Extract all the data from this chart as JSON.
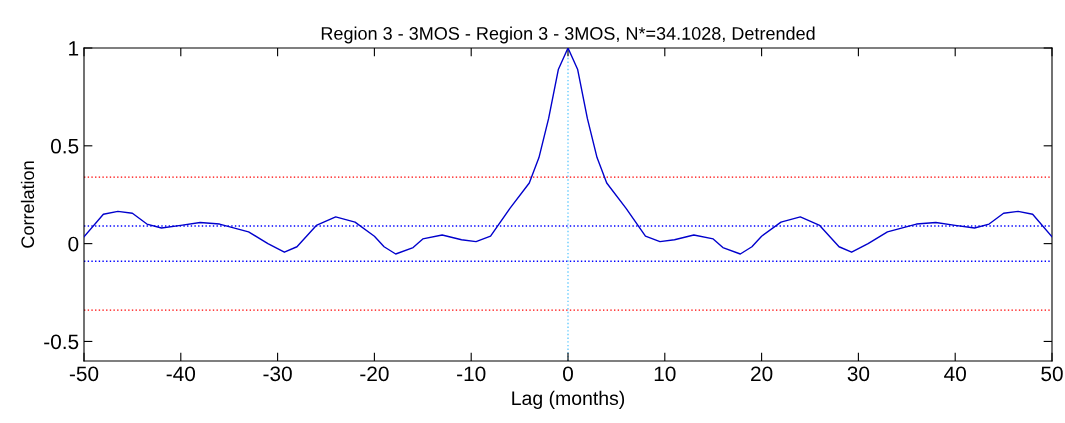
{
  "chart_data": {
    "type": "line",
    "title": "Region 3 - 3MOS - Region 3 - 3MOS, N*=34.1028, Detrended",
    "xlabel": "Lag (months)",
    "ylabel": "Correlation",
    "x": [
      -50,
      -48,
      -46.5,
      -45,
      -43.5,
      -42,
      -40,
      -38,
      -36,
      -33,
      -31,
      -29.3,
      -28,
      -26,
      -24,
      -22,
      -20,
      -19,
      -17.8,
      -16,
      -15,
      -13,
      -11,
      -9.5,
      -8,
      -6,
      -4,
      -3,
      -2,
      -1,
      0,
      1,
      2,
      3,
      4,
      6,
      8,
      9.5,
      11,
      13,
      15,
      16,
      17.8,
      19,
      20,
      22,
      24,
      26,
      28,
      29.3,
      31,
      33,
      36,
      38,
      40,
      42,
      43.5,
      45,
      46.5,
      48,
      50
    ],
    "series": [
      {
        "color": "#0000cc",
        "values": [
          0.035,
          0.15,
          0.165,
          0.155,
          0.1,
          0.08,
          0.093,
          0.108,
          0.1,
          0.06,
          0.0,
          -0.044,
          -0.016,
          0.093,
          0.137,
          0.11,
          0.038,
          -0.016,
          -0.053,
          -0.02,
          0.024,
          0.044,
          0.02,
          0.01,
          0.038,
          0.18,
          0.31,
          0.44,
          0.64,
          0.89,
          1.0,
          0.89,
          0.64,
          0.44,
          0.31,
          0.18,
          0.038,
          0.01,
          0.02,
          0.044,
          0.024,
          -0.02,
          -0.053,
          -0.016,
          0.038,
          0.11,
          0.137,
          0.093,
          -0.016,
          -0.044,
          0.0,
          0.06,
          0.1,
          0.108,
          0.093,
          0.08,
          0.1,
          0.155,
          0.165,
          0.15,
          0.035
        ]
      }
    ],
    "xlim": [
      -50,
      50
    ],
    "ylim": [
      -0.6,
      1
    ],
    "xticks": [
      -50,
      -40,
      -30,
      -20,
      -10,
      0,
      10,
      20,
      30,
      40,
      50
    ],
    "yticks": [
      -0.5,
      0,
      0.5,
      1
    ],
    "ref_lines": [
      {
        "axis": "y",
        "value": 0.34,
        "color": "#ff0000",
        "line_style": "dotted"
      },
      {
        "axis": "y",
        "value": -0.34,
        "color": "#ff0000",
        "line_style": "dotted"
      },
      {
        "axis": "y",
        "value": 0.09,
        "color": "#0000ff",
        "line_style": "dotted"
      },
      {
        "axis": "y",
        "value": -0.09,
        "color": "#0000ff",
        "line_style": "dotted"
      },
      {
        "axis": "x",
        "value": 0,
        "color": "#66ccff",
        "line_style": "dotted"
      }
    ],
    "grid": false,
    "legend": false,
    "marker": "none",
    "line_style": "solid"
  }
}
